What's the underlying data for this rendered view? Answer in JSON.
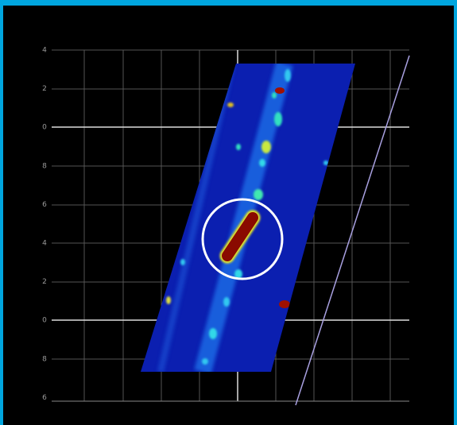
{
  "axis_labels": [
    "4",
    "2",
    "0",
    "8",
    "6",
    "4",
    "2",
    "0",
    "8",
    "6"
  ]
}
